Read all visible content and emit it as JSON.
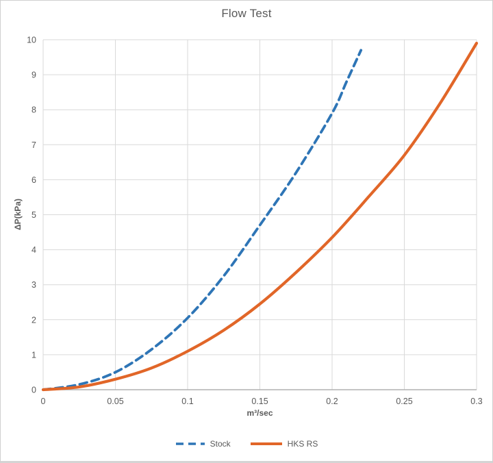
{
  "chart_data": {
    "type": "line",
    "title": "Flow Test",
    "xlabel": "m³/sec",
    "ylabel": "ΔP(kPa)",
    "xlim": [
      0,
      0.3
    ],
    "ylim": [
      0,
      10
    ],
    "x_ticks": [
      0,
      0.05,
      0.1,
      0.15,
      0.2,
      0.25,
      0.3
    ],
    "x_tick_labels": [
      "0",
      "0.05",
      "0.1",
      "0.15",
      "0.2",
      "0.25",
      "0.3"
    ],
    "y_ticks": [
      0,
      1,
      2,
      3,
      4,
      5,
      6,
      7,
      8,
      9,
      10
    ],
    "y_tick_labels": [
      "0",
      "1",
      "2",
      "3",
      "4",
      "5",
      "6",
      "7",
      "8",
      "9",
      "10"
    ],
    "grid": true,
    "legend_position": "bottom-center",
    "colors": {
      "gridline": "#d9d9d9",
      "axis_line": "#b0b0b0",
      "tick_text": "#595959",
      "title_text": "#595959"
    },
    "series": [
      {
        "name": "Stock",
        "color": "#2E75B6",
        "style": "dashed",
        "x": [
          0,
          0.025,
          0.05,
          0.075,
          0.1,
          0.125,
          0.15,
          0.175,
          0.2,
          0.21,
          0.22
        ],
        "y": [
          0,
          0.15,
          0.5,
          1.15,
          2.05,
          3.25,
          4.7,
          6.2,
          7.9,
          8.8,
          9.7
        ]
      },
      {
        "name": "HKS RS",
        "color": "#E16628",
        "style": "solid",
        "x": [
          0,
          0.025,
          0.05,
          0.075,
          0.1,
          0.125,
          0.15,
          0.175,
          0.2,
          0.225,
          0.25,
          0.275,
          0.3
        ],
        "y": [
          0,
          0.08,
          0.3,
          0.62,
          1.1,
          1.7,
          2.45,
          3.35,
          4.35,
          5.5,
          6.7,
          8.2,
          9.9
        ]
      }
    ]
  }
}
